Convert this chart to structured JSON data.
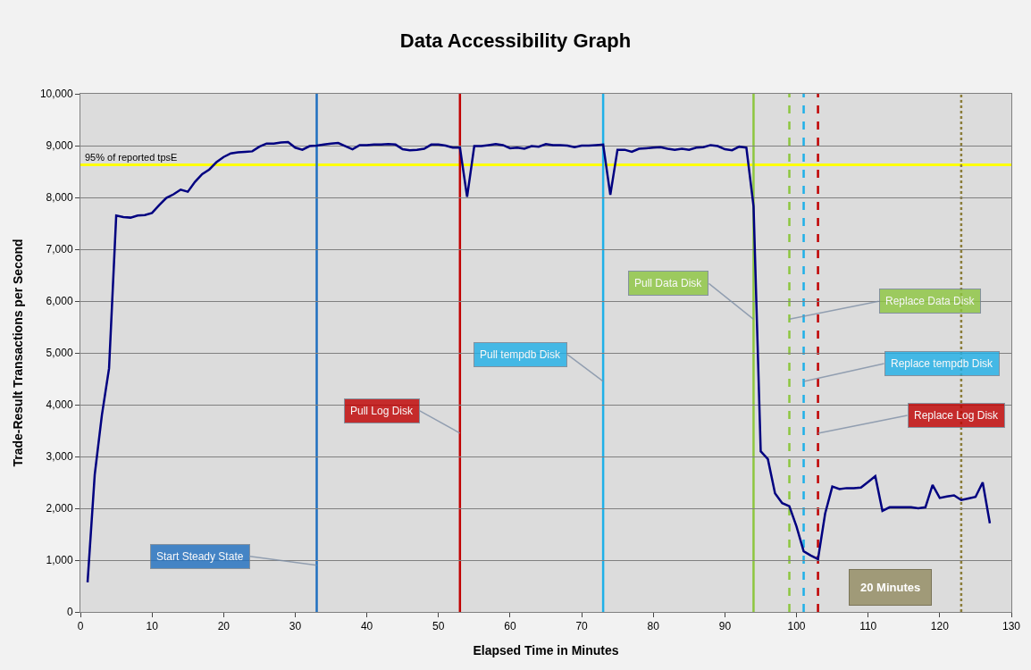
{
  "chart_data": {
    "type": "line",
    "title": "Data Accessibility Graph",
    "xlabel": "Elapsed Time in Minutes",
    "ylabel": "Trade-Result Transactions per Second",
    "x": [
      1,
      2,
      3,
      4,
      5,
      6,
      7,
      8,
      9,
      10,
      11,
      12,
      13,
      14,
      15,
      16,
      17,
      18,
      19,
      20,
      21,
      22,
      23,
      24,
      25,
      26,
      27,
      28,
      29,
      30,
      31,
      32,
      33,
      34,
      35,
      36,
      37,
      38,
      39,
      40,
      41,
      42,
      43,
      44,
      45,
      46,
      47,
      48,
      49,
      50,
      51,
      52,
      53,
      54,
      55,
      56,
      57,
      58,
      59,
      60,
      61,
      62,
      63,
      64,
      65,
      66,
      67,
      68,
      69,
      70,
      71,
      72,
      73,
      74,
      75,
      76,
      77,
      78,
      79,
      80,
      81,
      82,
      83,
      84,
      85,
      86,
      87,
      88,
      89,
      90,
      91,
      92,
      93,
      94,
      95,
      96,
      97,
      98,
      99,
      100,
      101,
      102,
      103,
      104,
      105,
      106,
      107,
      108,
      109,
      110,
      111,
      112,
      113,
      114,
      115,
      116,
      117,
      118,
      119,
      120,
      121,
      122,
      123,
      124,
      125,
      126,
      127
    ],
    "series": [
      {
        "color": "#000080",
        "values": [
          570,
          2650,
          3800,
          4700,
          7650,
          7620,
          7610,
          7650,
          7660,
          7700,
          7850,
          7990,
          8060,
          8150,
          8110,
          8300,
          8450,
          8540,
          8680,
          8780,
          8850,
          8870,
          8880,
          8890,
          8980,
          9040,
          9040,
          9060,
          9070,
          8960,
          8920,
          8990,
          9000,
          9020,
          9040,
          9050,
          8990,
          8930,
          9010,
          9010,
          9020,
          9020,
          9030,
          9020,
          8930,
          8910,
          8920,
          8940,
          9020,
          9020,
          9000,
          8960,
          8960,
          8010,
          8990,
          8990,
          9010,
          9030,
          9010,
          8950,
          8960,
          8940,
          8990,
          8980,
          9030,
          9010,
          9010,
          9000,
          8970,
          9000,
          9000,
          9010,
          9020,
          8050,
          8920,
          8920,
          8880,
          8940,
          8950,
          8960,
          8970,
          8940,
          8920,
          8940,
          8920,
          8960,
          8970,
          9010,
          8990,
          8930,
          8910,
          8980,
          8960,
          7830,
          3100,
          2950,
          2290,
          2100,
          2040,
          1650,
          1170,
          1090,
          1020,
          1900,
          2420,
          2370,
          2390,
          2390,
          2400,
          2510,
          2620,
          1950,
          2020,
          2020,
          2020,
          2020,
          2000,
          2020,
          2450,
          2200,
          2230,
          2250,
          2160,
          2190,
          2220,
          2500,
          1710
        ]
      }
    ],
    "xlim": [
      0,
      130
    ],
    "xticks": [
      0,
      10,
      20,
      30,
      40,
      50,
      60,
      70,
      80,
      90,
      100,
      110,
      120,
      130
    ],
    "ylim": [
      0,
      10000
    ],
    "yticks": [
      {
        "value": 0,
        "label": "0"
      },
      {
        "value": 1000,
        "label": "1,000"
      },
      {
        "value": 2000,
        "label": "2,000"
      },
      {
        "value": 3000,
        "label": "3,000"
      },
      {
        "value": 4000,
        "label": "4,000"
      },
      {
        "value": 5000,
        "label": "5,000"
      },
      {
        "value": 6000,
        "label": "6,000"
      },
      {
        "value": 7000,
        "label": "7,000"
      },
      {
        "value": 8000,
        "label": "8,000"
      },
      {
        "value": 9000,
        "label": "9,000"
      },
      {
        "value": 10000,
        "label": "10,000"
      }
    ],
    "grid": "y",
    "marker": "none",
    "line_style": "solid",
    "ref_lines": [
      {
        "axis": "y",
        "value": 8630,
        "label": "95% of reported tpsE",
        "color": "#ffff00",
        "line_style": "solid"
      },
      {
        "axis": "x",
        "value": 33,
        "label": "Start Steady State",
        "color": "#1f6fc0",
        "line_style": "solid"
      },
      {
        "axis": "x",
        "value": 53,
        "label": "Pull Log Disk",
        "color": "#c00000",
        "line_style": "solid"
      },
      {
        "axis": "x",
        "value": 73,
        "label": "Pull tempdb Disk",
        "color": "#1fb0e8",
        "line_style": "solid"
      },
      {
        "axis": "x",
        "value": 94,
        "label": "Pull Data Disk",
        "color": "#8dc63f",
        "line_style": "solid"
      },
      {
        "axis": "x",
        "value": 99,
        "label": "Replace Data Disk",
        "color": "#8dc63f",
        "line_style": "dashed"
      },
      {
        "axis": "x",
        "value": 101,
        "label": "Replace tempdb Disk",
        "color": "#1fb0e8",
        "line_style": "dashed"
      },
      {
        "axis": "x",
        "value": 103,
        "label": "Replace Log Disk",
        "color": "#c00000",
        "line_style": "dashed"
      },
      {
        "axis": "x",
        "value": 123,
        "color": "#8b7d3a",
        "line_style": "dotted"
      }
    ],
    "annotations": [
      "20 Minutes"
    ]
  }
}
